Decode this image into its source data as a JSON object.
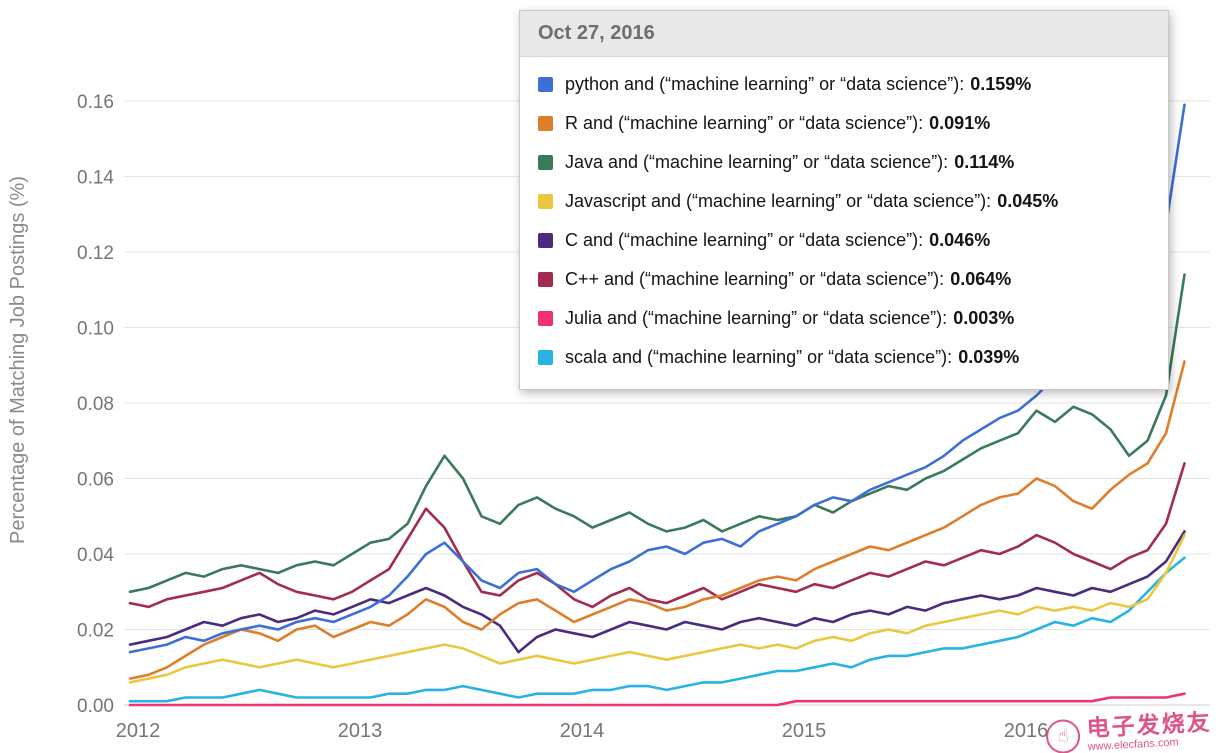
{
  "tooltip": {
    "date": "Oct 27, 2016"
  },
  "watermark": {
    "line1": "电子发烧友",
    "line2": "www.elecfans.com"
  },
  "chart_data": {
    "type": "line",
    "title": "",
    "xlabel": "",
    "ylabel": "Percentage of Matching Job Postings (%)",
    "xlim": [
      2012,
      2016.92
    ],
    "ylim": [
      0,
      0.16
    ],
    "grid": "horizontal",
    "legend_position": "tooltip-top",
    "x_ticks": [
      2012,
      2013,
      2014,
      2015,
      2016
    ],
    "y_ticks": [
      0,
      0.02,
      0.04,
      0.06,
      0.08,
      0.1,
      0.12,
      0.14,
      0.16
    ],
    "x_start": 2012,
    "x_step_years": 0.08333,
    "series": [
      {
        "key": "python",
        "name": "python and (“machine learning” or “data science”)",
        "color": "#3d6fd8",
        "tooltip_value": "0.159%",
        "values": [
          0.014,
          0.015,
          0.016,
          0.018,
          0.017,
          0.019,
          0.02,
          0.021,
          0.02,
          0.022,
          0.023,
          0.022,
          0.024,
          0.026,
          0.029,
          0.034,
          0.04,
          0.043,
          0.038,
          0.033,
          0.031,
          0.035,
          0.036,
          0.032,
          0.03,
          0.033,
          0.036,
          0.038,
          0.041,
          0.042,
          0.04,
          0.043,
          0.044,
          0.042,
          0.046,
          0.048,
          0.05,
          0.053,
          0.055,
          0.054,
          0.057,
          0.059,
          0.061,
          0.063,
          0.066,
          0.07,
          0.073,
          0.076,
          0.078,
          0.082,
          0.087,
          0.091,
          0.089,
          0.093,
          0.088,
          0.09,
          0.127,
          0.159
        ]
      },
      {
        "key": "r",
        "name": "R and (“machine learning” or “data science”)",
        "color": "#df7e2a",
        "tooltip_value": "0.091%",
        "values": [
          0.007,
          0.008,
          0.01,
          0.013,
          0.016,
          0.018,
          0.02,
          0.019,
          0.017,
          0.02,
          0.021,
          0.018,
          0.02,
          0.022,
          0.021,
          0.024,
          0.028,
          0.026,
          0.022,
          0.02,
          0.024,
          0.027,
          0.028,
          0.025,
          0.022,
          0.024,
          0.026,
          0.028,
          0.027,
          0.025,
          0.026,
          0.028,
          0.029,
          0.031,
          0.033,
          0.034,
          0.033,
          0.036,
          0.038,
          0.04,
          0.042,
          0.041,
          0.043,
          0.045,
          0.047,
          0.05,
          0.053,
          0.055,
          0.056,
          0.06,
          0.058,
          0.054,
          0.052,
          0.057,
          0.061,
          0.064,
          0.072,
          0.091
        ]
      },
      {
        "key": "java",
        "name": "Java and (“machine learning” or “data science”)",
        "color": "#3a7a5b",
        "tooltip_value": "0.114%",
        "values": [
          0.03,
          0.031,
          0.033,
          0.035,
          0.034,
          0.036,
          0.037,
          0.036,
          0.035,
          0.037,
          0.038,
          0.037,
          0.04,
          0.043,
          0.044,
          0.048,
          0.058,
          0.066,
          0.06,
          0.05,
          0.048,
          0.053,
          0.055,
          0.052,
          0.05,
          0.047,
          0.049,
          0.051,
          0.048,
          0.046,
          0.047,
          0.049,
          0.046,
          0.048,
          0.05,
          0.049,
          0.05,
          0.053,
          0.051,
          0.054,
          0.056,
          0.058,
          0.057,
          0.06,
          0.062,
          0.065,
          0.068,
          0.07,
          0.072,
          0.078,
          0.075,
          0.079,
          0.077,
          0.073,
          0.066,
          0.07,
          0.082,
          0.114
        ]
      },
      {
        "key": "javascript",
        "name": "Javascript and (“machine learning” or “data science”)",
        "color": "#eac73f",
        "tooltip_value": "0.045%",
        "values": [
          0.006,
          0.007,
          0.008,
          0.01,
          0.011,
          0.012,
          0.011,
          0.01,
          0.011,
          0.012,
          0.011,
          0.01,
          0.011,
          0.012,
          0.013,
          0.014,
          0.015,
          0.016,
          0.015,
          0.013,
          0.011,
          0.012,
          0.013,
          0.012,
          0.011,
          0.012,
          0.013,
          0.014,
          0.013,
          0.012,
          0.013,
          0.014,
          0.015,
          0.016,
          0.015,
          0.016,
          0.015,
          0.017,
          0.018,
          0.017,
          0.019,
          0.02,
          0.019,
          0.021,
          0.022,
          0.023,
          0.024,
          0.025,
          0.024,
          0.026,
          0.025,
          0.026,
          0.025,
          0.027,
          0.026,
          0.028,
          0.035,
          0.045
        ]
      },
      {
        "key": "c",
        "name": "C and (“machine learning” or “data science”)",
        "color": "#4a2c7f",
        "tooltip_value": "0.046%",
        "values": [
          0.016,
          0.017,
          0.018,
          0.02,
          0.022,
          0.021,
          0.023,
          0.024,
          0.022,
          0.023,
          0.025,
          0.024,
          0.026,
          0.028,
          0.027,
          0.029,
          0.031,
          0.029,
          0.026,
          0.024,
          0.021,
          0.014,
          0.018,
          0.02,
          0.019,
          0.018,
          0.02,
          0.022,
          0.021,
          0.02,
          0.022,
          0.021,
          0.02,
          0.022,
          0.023,
          0.022,
          0.021,
          0.023,
          0.022,
          0.024,
          0.025,
          0.024,
          0.026,
          0.025,
          0.027,
          0.028,
          0.029,
          0.028,
          0.029,
          0.031,
          0.03,
          0.029,
          0.031,
          0.03,
          0.032,
          0.034,
          0.038,
          0.046
        ]
      },
      {
        "key": "cpp",
        "name": "C++ and (“machine learning” or “data science”)",
        "color": "#a22c50",
        "tooltip_value": "0.064%",
        "values": [
          0.027,
          0.026,
          0.028,
          0.029,
          0.03,
          0.031,
          0.033,
          0.035,
          0.032,
          0.03,
          0.029,
          0.028,
          0.03,
          0.033,
          0.036,
          0.044,
          0.052,
          0.047,
          0.038,
          0.03,
          0.029,
          0.033,
          0.035,
          0.032,
          0.028,
          0.026,
          0.029,
          0.031,
          0.028,
          0.027,
          0.029,
          0.031,
          0.028,
          0.03,
          0.032,
          0.031,
          0.03,
          0.032,
          0.031,
          0.033,
          0.035,
          0.034,
          0.036,
          0.038,
          0.037,
          0.039,
          0.041,
          0.04,
          0.042,
          0.045,
          0.043,
          0.04,
          0.038,
          0.036,
          0.039,
          0.041,
          0.048,
          0.064
        ]
      },
      {
        "key": "julia",
        "name": "Julia and (“machine learning” or “data science”)",
        "color": "#f0336e",
        "tooltip_value": "0.003%",
        "values": [
          0.0,
          0.0,
          0.0,
          0.0,
          0.0,
          0.0,
          0.0,
          0.0,
          0.0,
          0.0,
          0.0,
          0.0,
          0.0,
          0.0,
          0.0,
          0.0,
          0.0,
          0.0,
          0.0,
          0.0,
          0.0,
          0.0,
          0.0,
          0.0,
          0.0,
          0.0,
          0.0,
          0.0,
          0.0,
          0.0,
          0.0,
          0.0,
          0.0,
          0.0,
          0.0,
          0.0,
          0.001,
          0.001,
          0.001,
          0.001,
          0.001,
          0.001,
          0.001,
          0.001,
          0.001,
          0.001,
          0.001,
          0.001,
          0.001,
          0.001,
          0.001,
          0.001,
          0.001,
          0.002,
          0.002,
          0.002,
          0.002,
          0.003
        ]
      },
      {
        "key": "scala",
        "name": "scala and (“machine learning” or “data science”)",
        "color": "#27b3e4",
        "tooltip_value": "0.039%",
        "values": [
          0.001,
          0.001,
          0.001,
          0.002,
          0.002,
          0.002,
          0.003,
          0.004,
          0.003,
          0.002,
          0.002,
          0.002,
          0.002,
          0.002,
          0.003,
          0.003,
          0.004,
          0.004,
          0.005,
          0.004,
          0.003,
          0.002,
          0.003,
          0.003,
          0.003,
          0.004,
          0.004,
          0.005,
          0.005,
          0.004,
          0.005,
          0.006,
          0.006,
          0.007,
          0.008,
          0.009,
          0.009,
          0.01,
          0.011,
          0.01,
          0.012,
          0.013,
          0.013,
          0.014,
          0.015,
          0.015,
          0.016,
          0.017,
          0.018,
          0.02,
          0.022,
          0.021,
          0.023,
          0.022,
          0.025,
          0.03,
          0.035,
          0.039
        ]
      }
    ]
  }
}
